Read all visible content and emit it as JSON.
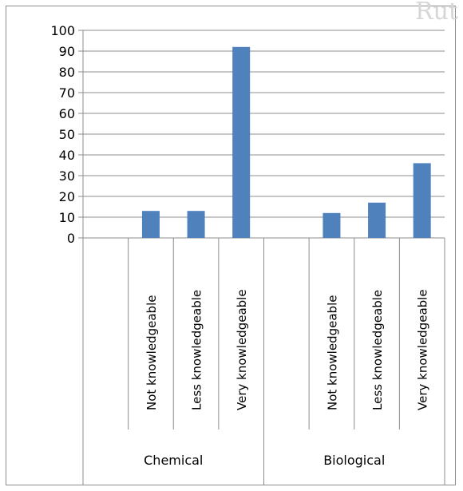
{
  "watermark": "Rut",
  "chart_data": {
    "type": "bar",
    "title": "",
    "xlabel": "",
    "ylabel": "",
    "ylim": [
      0,
      100
    ],
    "yticks": [
      0,
      10,
      20,
      30,
      40,
      50,
      60,
      70,
      80,
      90,
      100
    ],
    "grid": true,
    "legend": "none",
    "bar_color": "#4f81bd",
    "groups": [
      {
        "name": "Chemical",
        "categories": [
          "",
          "Not knowledgeable",
          "Less knowledgeable",
          "Very knowledgeable"
        ],
        "values": [
          null,
          13,
          13,
          92
        ]
      },
      {
        "name": "Biological",
        "categories": [
          "",
          "Not knowledgeable",
          "Less knowledgeable",
          "Very knowledgeable"
        ],
        "values": [
          null,
          12,
          17,
          36
        ]
      }
    ]
  }
}
